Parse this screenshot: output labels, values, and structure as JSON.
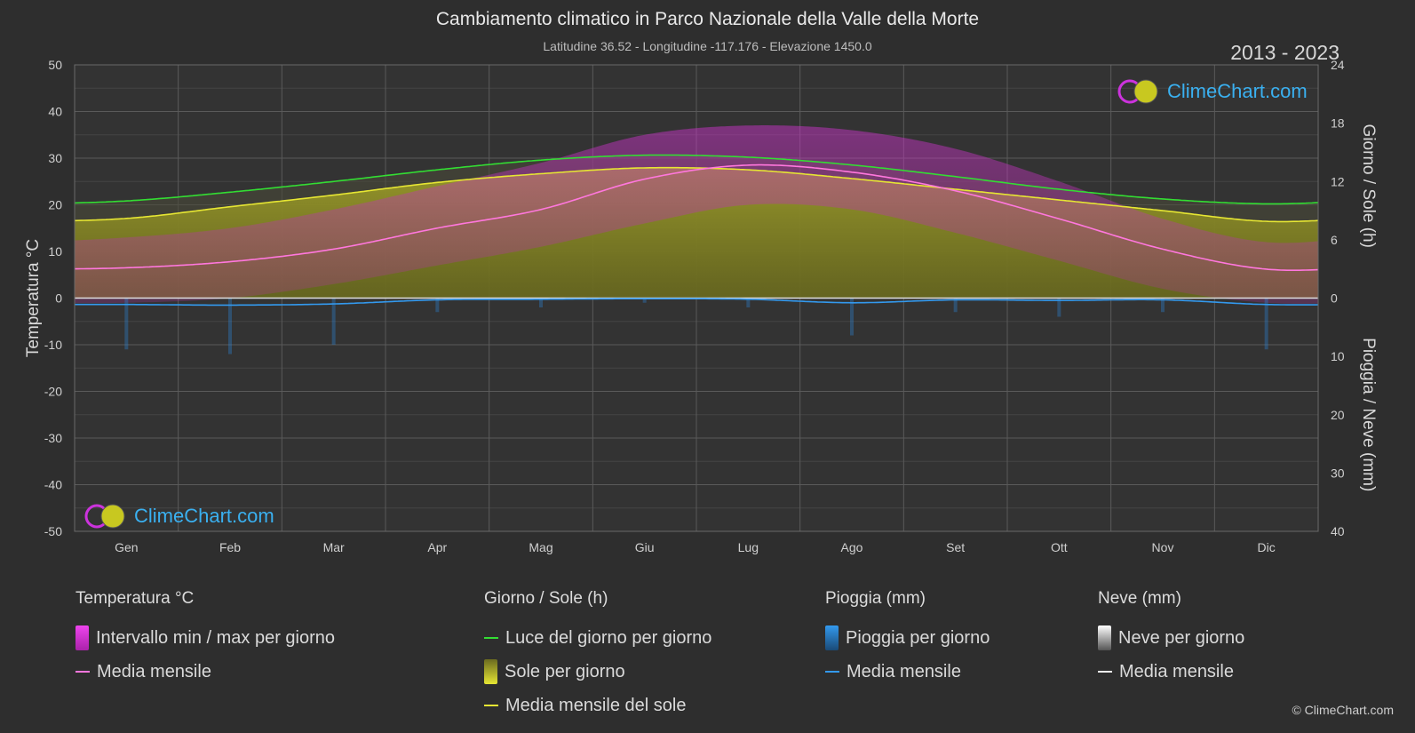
{
  "header": {
    "title": "Cambiamento climatico in Parco Nazionale della Valle della Morte",
    "subtitle": "Latitudine 36.52 - Longitudine -117.176 - Elevazione 1450.0",
    "years": "2013 - 2023"
  },
  "logo": {
    "text": "ClimeChart.com"
  },
  "copyright": "© ClimeChart.com",
  "colors": {
    "background": "#2e2e2e",
    "grid": "#5a5a5a",
    "daylight": "#33dd33",
    "sun_mean": "#e6e633",
    "sun_fill": "#8c8c1e",
    "temp_range": "#cc33cc",
    "temp_mean": "#ff77dd",
    "rain": "#2a88dd",
    "rain_mean": "#3399ee",
    "snow": "#dddddd",
    "zero_line": "#e0e0e0",
    "logo_blue": "#3ab0f0"
  },
  "chart_data": {
    "type": "area",
    "months": [
      "Gen",
      "Feb",
      "Mar",
      "Apr",
      "Mag",
      "Giu",
      "Lug",
      "Ago",
      "Set",
      "Ott",
      "Nov",
      "Dic"
    ],
    "left_axis": {
      "label": "Temperatura °C",
      "ticks": [
        "50",
        "40",
        "30",
        "20",
        "10",
        "0",
        "-10",
        "-20",
        "-30",
        "-40",
        "-50"
      ],
      "range": [
        -50,
        50
      ]
    },
    "right_axis_top": {
      "label": "Giorno / Sole (h)",
      "ticks": [
        "24",
        "18",
        "12",
        "6",
        "0"
      ],
      "range": [
        0,
        24
      ]
    },
    "right_axis_bottom": {
      "label": "Pioggia / Neve (mm)",
      "ticks": [
        "0",
        "10",
        "20",
        "30",
        "40"
      ],
      "range": [
        0,
        40
      ]
    },
    "series": [
      {
        "name": "Luce del giorno per giorno",
        "unit": "h",
        "values": [
          10.0,
          10.9,
          12.0,
          13.2,
          14.2,
          14.7,
          14.5,
          13.7,
          12.5,
          11.2,
          10.2,
          9.7
        ]
      },
      {
        "name": "Media mensile del sole",
        "unit": "h",
        "values": [
          8.2,
          9.4,
          10.6,
          11.9,
          12.8,
          13.4,
          13.2,
          12.3,
          11.2,
          10.1,
          9.0,
          7.9
        ]
      },
      {
        "name": "Media mensile",
        "unit": "°C",
        "values": [
          6.5,
          7.8,
          10.5,
          15.0,
          19.0,
          25.5,
          28.5,
          27.0,
          23.0,
          17.0,
          10.5,
          6.2
        ]
      },
      {
        "name": "Temperatura max (stima)",
        "unit": "°C",
        "values": [
          13,
          15,
          19,
          24,
          29,
          35,
          37,
          36,
          32,
          25,
          17,
          12
        ]
      },
      {
        "name": "Temperatura min (stima)",
        "unit": "°C",
        "values": [
          -1,
          0,
          3,
          7,
          11,
          16,
          20,
          19,
          14,
          8,
          2,
          -1
        ]
      },
      {
        "name": "Pioggia media mensile",
        "unit": "mm",
        "values": [
          1.1,
          1.2,
          1.0,
          0.3,
          0.2,
          0.1,
          0.2,
          0.8,
          0.3,
          0.4,
          0.3,
          1.1
        ]
      }
    ]
  },
  "legend": {
    "temperature": {
      "title": "Temperatura °C",
      "items": [
        "Intervallo min / max per giorno",
        "Media mensile"
      ]
    },
    "sun": {
      "title": "Giorno / Sole (h)",
      "items": [
        "Luce del giorno per giorno",
        "Sole per giorno",
        "Media mensile del sole"
      ]
    },
    "rain": {
      "title": "Pioggia (mm)",
      "items": [
        "Pioggia per giorno",
        "Media mensile"
      ]
    },
    "snow": {
      "title": "Neve (mm)",
      "items": [
        "Neve per giorno",
        "Media mensile"
      ]
    }
  }
}
